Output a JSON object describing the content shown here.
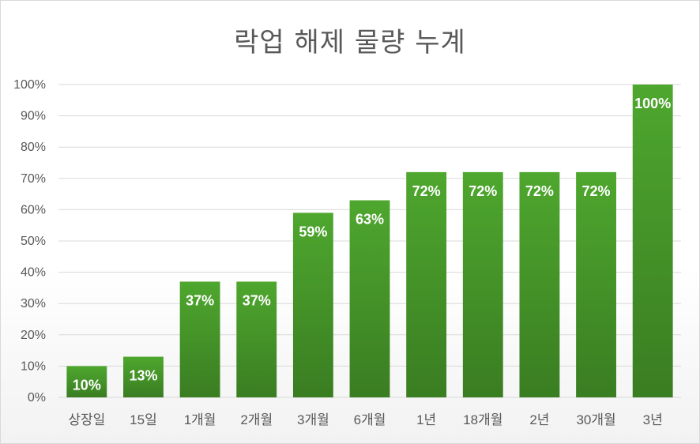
{
  "chart_data": {
    "type": "bar",
    "title": "락업 해제 물량 누계",
    "categories": [
      "상장일",
      "15일",
      "1개월",
      "2개월",
      "3개월",
      "6개월",
      "1년",
      "18개월",
      "2년",
      "30개월",
      "3년"
    ],
    "values": [
      10,
      13,
      37,
      37,
      59,
      63,
      72,
      72,
      72,
      72,
      100
    ],
    "data_labels": [
      "10%",
      "13%",
      "37%",
      "37%",
      "59%",
      "63%",
      "72%",
      "72%",
      "72%",
      "72%",
      "100%"
    ],
    "ylim": [
      0,
      100
    ],
    "y_ticks": [
      "0%",
      "10%",
      "20%",
      "30%",
      "40%",
      "50%",
      "60%",
      "70%",
      "80%",
      "90%",
      "100%"
    ],
    "grid": true,
    "legend": "none",
    "bar_color": "#4ea72e",
    "bar_color_dark": "#3a7d22"
  }
}
